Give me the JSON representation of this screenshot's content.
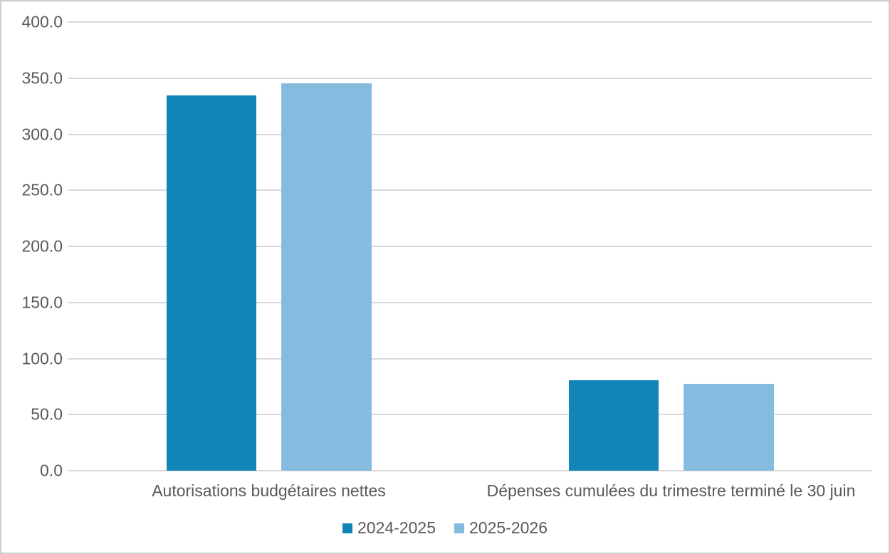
{
  "chart_data": {
    "type": "bar",
    "title": "",
    "xlabel": "",
    "ylabel": "",
    "categories": [
      "Autorisations budgétaires nettes",
      "Dépenses cumulées du trimestre terminé le 30 juin"
    ],
    "series": [
      {
        "name": "2024-2025",
        "color": "#1285B8",
        "values": [
          334.8,
          80.5
        ]
      },
      {
        "name": "2025-2026",
        "color": "#86BBE0",
        "values": [
          345.5,
          77.5
        ]
      }
    ],
    "ylim": [
      0,
      400
    ],
    "ytick_step": 50,
    "ytick_labels": [
      "0.0",
      "50.0",
      "100.0",
      "150.0",
      "200.0",
      "250.0",
      "300.0",
      "350.0",
      "400.0"
    ],
    "grid": true,
    "gridline_color": "#d9d9d9",
    "axis_text_color": "#595959",
    "legend_position": "bottom",
    "legend_entries": [
      "2024-2025",
      "2025-2026"
    ]
  }
}
